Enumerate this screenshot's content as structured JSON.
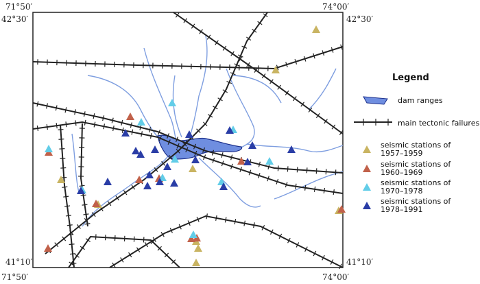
{
  "coordinates": {
    "lon_west": "71°50′",
    "lon_east": "74°00′",
    "lat_north": "42°30′",
    "lat_south": "41°10′"
  },
  "legend": {
    "title": "Legend",
    "items": [
      {
        "lines": [
          "dam ranges"
        ]
      },
      {
        "lines": [
          "main tectonic failures"
        ]
      },
      {
        "lines": [
          "seismic stations of",
          "1957–1959"
        ]
      },
      {
        "lines": [
          "seismic stations of",
          "1960–1969"
        ]
      },
      {
        "lines": [
          "seismic stations of",
          "1970–1978"
        ]
      },
      {
        "lines": [
          "seismic stations of",
          "1978–1991"
        ]
      }
    ]
  }
}
